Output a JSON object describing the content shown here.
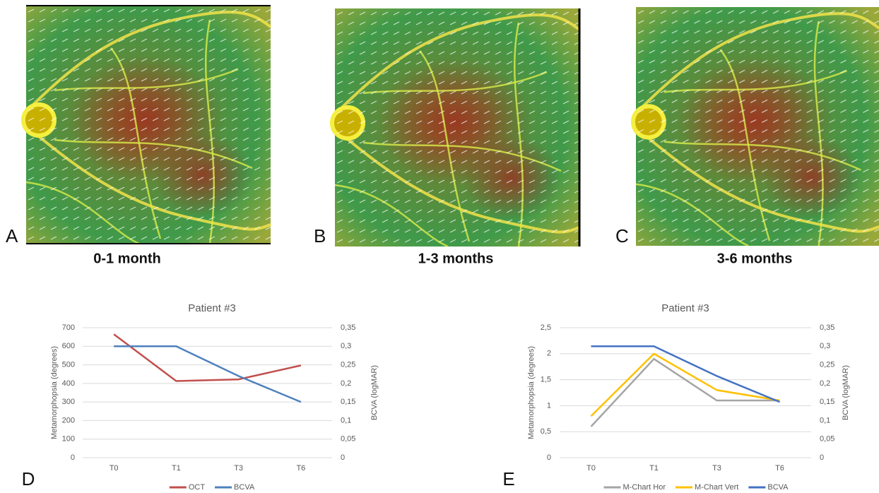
{
  "panels": [
    {
      "letter": "A",
      "caption": "0-1 month"
    },
    {
      "letter": "B",
      "caption": "1-3 months"
    },
    {
      "letter": "C",
      "caption": "3-6 months"
    }
  ],
  "chart_data": [
    {
      "type": "line",
      "panel_label": "D",
      "title": "Patient #3",
      "y_label": "Metamorphopsia (degrees)",
      "y2_label": "BCVA (logMAR)",
      "categories": [
        "T0",
        "T1",
        "T3",
        "T6"
      ],
      "series": [
        {
          "name": "OCT",
          "color": "#c0504d",
          "values": [
            665,
            413,
            422,
            497
          ]
        },
        {
          "name": "BCVA",
          "color": "#4f81bd",
          "axis": "y2",
          "values": [
            0.3,
            0.3,
            0.22,
            0.15
          ]
        }
      ],
      "ylim": [
        0,
        700
      ],
      "yticks": [
        0,
        100,
        200,
        300,
        400,
        500,
        600,
        700
      ],
      "y2lim": [
        0,
        0.35
      ],
      "y2ticks": [
        0,
        {
          "value": 0.05,
          "label": "0,05"
        },
        {
          "value": 0.1,
          "label": "0,1"
        },
        {
          "value": 0.15,
          "label": "0,15"
        },
        {
          "value": 0.2,
          "label": "0,2"
        },
        {
          "value": 0.25,
          "label": "0,25"
        },
        {
          "value": 0.3,
          "label": "0,3"
        },
        {
          "value": 0.35,
          "label": "0,35"
        }
      ],
      "grid": true,
      "legend": "bottom"
    },
    {
      "type": "line",
      "panel_label": "E",
      "title": "Patient #3",
      "y_label": "Metamorphopsia (degrees)",
      "y2_label": "BCVA (logMAR)",
      "categories": [
        "T0",
        "T1",
        "T3",
        "T6"
      ],
      "series": [
        {
          "name": "M-Chart Hor",
          "color": "#a5a5a5",
          "values": [
            0.6,
            1.9,
            1.1,
            1.1
          ]
        },
        {
          "name": "M-Chart Vert",
          "color": "#ffc000",
          "values": [
            0.8,
            2.0,
            1.3,
            1.1
          ]
        },
        {
          "name": "BCVA",
          "color": "#4472c4",
          "axis": "y2",
          "values": [
            0.3,
            0.3,
            0.22,
            0.15
          ]
        }
      ],
      "ylim": [
        0,
        2.5
      ],
      "yticks": [
        0,
        {
          "value": 0.5,
          "label": "0,5"
        },
        1,
        {
          "value": 1.5,
          "label": "1,5"
        },
        2,
        {
          "value": 2.5,
          "label": "2,5"
        }
      ],
      "y2lim": [
        0,
        0.35
      ],
      "y2ticks": [
        0,
        {
          "value": 0.05,
          "label": "0,05"
        },
        {
          "value": 0.1,
          "label": "0,1"
        },
        {
          "value": 0.15,
          "label": "0,15"
        },
        {
          "value": 0.2,
          "label": "0,2"
        },
        {
          "value": 0.25,
          "label": "0,25"
        },
        {
          "value": 0.3,
          "label": "0,3"
        },
        {
          "value": 0.35,
          "label": "0,35"
        }
      ],
      "grid": true,
      "legend": "bottom"
    }
  ]
}
